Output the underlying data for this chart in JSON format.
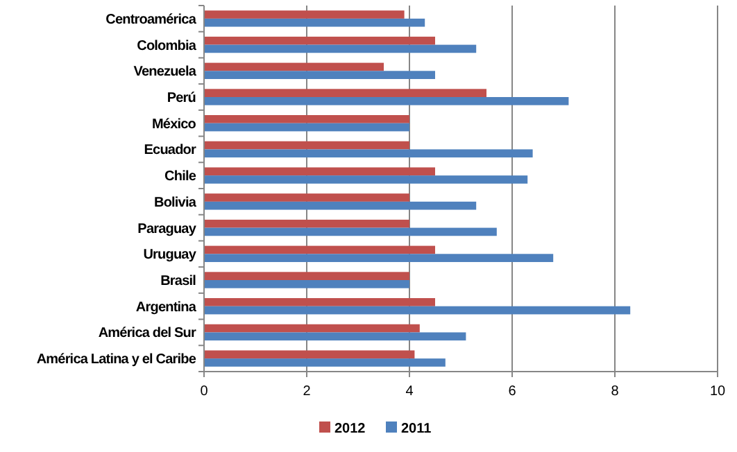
{
  "chart_data": {
    "type": "bar",
    "orientation": "horizontal",
    "categories": [
      "Centroamérica",
      "Colombia",
      "Venezuela",
      "Perú",
      "México",
      "Ecuador",
      "Chile",
      "Bolivia",
      "Paraguay",
      "Uruguay",
      "Brasil",
      "Argentina",
      "América del Sur",
      "América Latina y el Caribe"
    ],
    "series": [
      {
        "name": "2012",
        "color": "#c0504d",
        "values": [
          3.9,
          4.5,
          3.5,
          5.5,
          4.0,
          4.0,
          4.5,
          4.0,
          4.0,
          4.5,
          4.0,
          4.5,
          4.2,
          4.1
        ]
      },
      {
        "name": "2011",
        "color": "#4f81bd",
        "values": [
          4.3,
          5.3,
          4.5,
          7.1,
          4.0,
          6.4,
          6.3,
          5.3,
          5.7,
          6.8,
          4.0,
          8.3,
          5.1,
          4.7
        ]
      }
    ],
    "xlim": [
      0,
      10
    ],
    "xticks": [
      0,
      2,
      4,
      6,
      8,
      10
    ],
    "grid": "x",
    "legend": "bottom"
  }
}
